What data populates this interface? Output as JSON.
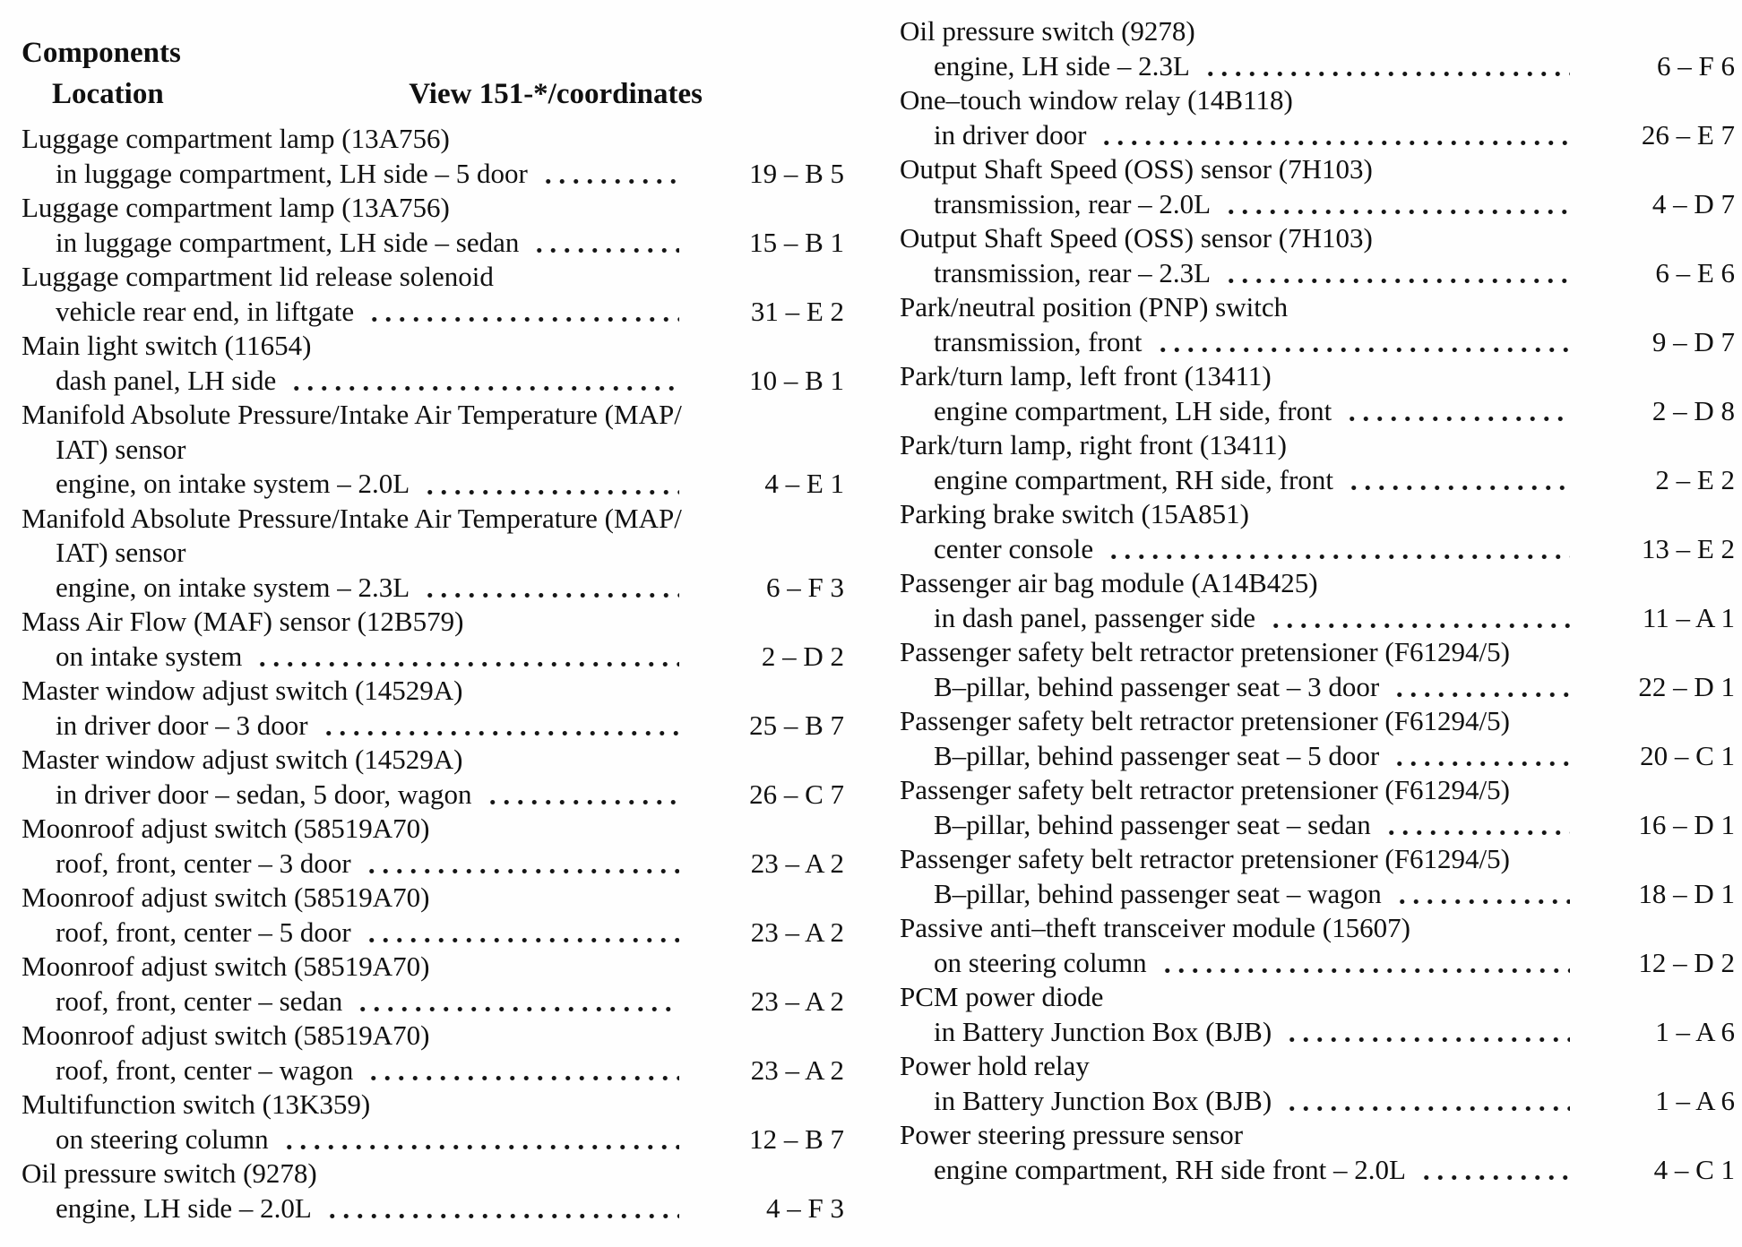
{
  "header": {
    "components_label": "Components",
    "location_label": "Location",
    "view_label": "View 151-*/coordinates"
  },
  "left_column": {
    "entries": [
      {
        "name": "Luggage compartment lamp (13A756)",
        "location": "in luggage compartment, LH side – 5 door",
        "coordinate": "19 – B 5"
      },
      {
        "name": "Luggage compartment lamp (13A756)",
        "location": "in luggage compartment, LH side – sedan",
        "coordinate": "15 – B 1"
      },
      {
        "name": "Luggage compartment lid release solenoid",
        "location": "vehicle rear end, in liftgate",
        "coordinate": "31 – E 2"
      },
      {
        "name": "Main light switch (11654)",
        "location": "dash panel, LH side",
        "coordinate": "10 – B 1"
      },
      {
        "name": [
          "Manifold Absolute Pressure/Intake Air Temperature (MAP/",
          "IAT) sensor"
        ],
        "location": "engine, on intake system – 2.0L",
        "coordinate": "4 – E 1"
      },
      {
        "name": [
          "Manifold Absolute Pressure/Intake Air Temperature (MAP/",
          "IAT) sensor"
        ],
        "location": "engine, on intake system – 2.3L",
        "coordinate": "6 – F 3"
      },
      {
        "name": "Mass Air Flow (MAF) sensor (12B579)",
        "location": "on intake system",
        "coordinate": "2 – D 2"
      },
      {
        "name": "Master window adjust switch (14529A)",
        "location": "in driver door – 3 door",
        "coordinate": "25 – B 7"
      },
      {
        "name": "Master window adjust switch (14529A)",
        "location": "in driver door – sedan, 5 door, wagon",
        "coordinate": "26 – C 7"
      },
      {
        "name": "Moonroof adjust switch (58519A70)",
        "location": "roof, front, center – 3 door",
        "coordinate": "23 – A 2"
      },
      {
        "name": "Moonroof adjust switch (58519A70)",
        "location": "roof, front, center – 5 door",
        "coordinate": "23 – A 2"
      },
      {
        "name": "Moonroof adjust switch (58519A70)",
        "location": "roof, front, center – sedan",
        "coordinate": "23 – A 2"
      },
      {
        "name": "Moonroof adjust switch (58519A70)",
        "location": "roof, front, center – wagon",
        "coordinate": "23 – A 2"
      },
      {
        "name": "Multifunction switch (13K359)",
        "location": "on steering column",
        "coordinate": "12 – B 7"
      },
      {
        "name": "Oil pressure switch (9278)",
        "location": "engine, LH side – 2.0L",
        "coordinate": "4 – F 3"
      }
    ]
  },
  "right_column": {
    "entries": [
      {
        "name": "Oil pressure switch (9278)",
        "location": "engine, LH side – 2.3L",
        "coordinate": "6 – F 6"
      },
      {
        "name": "One–touch window relay (14B118)",
        "location": "in driver door",
        "coordinate": "26 – E 7"
      },
      {
        "name": "Output Shaft Speed (OSS) sensor (7H103)",
        "location": "transmission, rear – 2.0L",
        "coordinate": "4 – D 7"
      },
      {
        "name": "Output Shaft Speed (OSS) sensor (7H103)",
        "location": "transmission, rear – 2.3L",
        "coordinate": "6 – E 6"
      },
      {
        "name": "Park/neutral position (PNP) switch",
        "location": "transmission, front",
        "coordinate": "9 – D 7"
      },
      {
        "name": "Park/turn lamp, left front (13411)",
        "location": "engine compartment, LH side, front",
        "coordinate": "2 – D 8"
      },
      {
        "name": "Park/turn lamp, right front (13411)",
        "location": "engine compartment, RH side, front",
        "coordinate": "2 – E 2"
      },
      {
        "name": "Parking brake switch (15A851)",
        "location": "center console",
        "coordinate": "13 – E 2"
      },
      {
        "name": "Passenger air bag module (A14B425)",
        "location": "in dash panel, passenger side",
        "coordinate": "11 – A 1"
      },
      {
        "name": "Passenger safety belt retractor pretensioner (F61294/5)",
        "location": "B–pillar, behind passenger seat – 3 door",
        "coordinate": "22 – D 1"
      },
      {
        "name": "Passenger safety belt retractor pretensioner (F61294/5)",
        "location": "B–pillar, behind passenger seat – 5 door",
        "coordinate": "20 – C 1"
      },
      {
        "name": "Passenger safety belt retractor pretensioner (F61294/5)",
        "location": "B–pillar, behind passenger seat – sedan",
        "coordinate": "16 – D 1"
      },
      {
        "name": "Passenger safety belt retractor pretensioner (F61294/5)",
        "location": "B–pillar, behind passenger seat – wagon",
        "coordinate": "18 – D 1"
      },
      {
        "name": "Passive anti–theft transceiver module (15607)",
        "location": "on steering column",
        "coordinate": "12 – D 2"
      },
      {
        "name": "PCM power diode",
        "location": "in Battery Junction Box (BJB)",
        "coordinate": "1 – A 6"
      },
      {
        "name": "Power hold relay",
        "location": "in Battery Junction Box (BJB)",
        "coordinate": "1 – A 6"
      },
      {
        "name": "Power steering pressure sensor",
        "location": "engine compartment, RH side front – 2.0L",
        "coordinate": "4 – C 1"
      }
    ]
  }
}
